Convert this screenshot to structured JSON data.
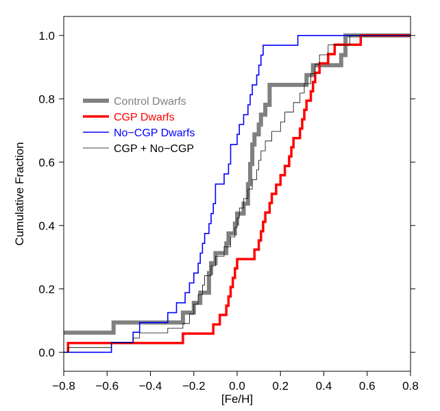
{
  "chart_data": {
    "type": "line",
    "step": true,
    "title": "",
    "xlabel": "[Fe/H]",
    "ylabel": "Cumulative Fraction",
    "xlim": [
      -0.8,
      0.8
    ],
    "ylim": [
      -0.06,
      1.06
    ],
    "x_ticks": [
      "−0.8",
      "−0.6",
      "−0.4",
      "−0.2",
      "0.0",
      "0.2",
      "0.4",
      "0.6",
      "0.8"
    ],
    "y_ticks": [
      "0.0",
      "0.2",
      "0.4",
      "0.6",
      "0.8",
      "1.0"
    ],
    "grid": false,
    "legend_position": "upper-left",
    "series": [
      {
        "name": "Control Dwarfs",
        "color": "#808080",
        "points": [
          [
            -0.8,
            0.062
          ],
          [
            -0.57,
            0.062
          ],
          [
            -0.57,
            0.094
          ],
          [
            -0.25,
            0.094
          ],
          [
            -0.25,
            0.125
          ],
          [
            -0.2,
            0.125
          ],
          [
            -0.2,
            0.156
          ],
          [
            -0.17,
            0.156
          ],
          [
            -0.17,
            0.188
          ],
          [
            -0.13,
            0.188
          ],
          [
            -0.13,
            0.25
          ],
          [
            -0.12,
            0.25
          ],
          [
            -0.12,
            0.281
          ],
          [
            -0.1,
            0.281
          ],
          [
            -0.1,
            0.313
          ],
          [
            -0.05,
            0.313
          ],
          [
            -0.05,
            0.344
          ],
          [
            -0.04,
            0.344
          ],
          [
            -0.04,
            0.375
          ],
          [
            -0.01,
            0.375
          ],
          [
            -0.01,
            0.406
          ],
          [
            0.0,
            0.406
          ],
          [
            0.0,
            0.438
          ],
          [
            0.03,
            0.438
          ],
          [
            0.03,
            0.469
          ],
          [
            0.05,
            0.469
          ],
          [
            0.05,
            0.531
          ],
          [
            0.06,
            0.531
          ],
          [
            0.06,
            0.594
          ],
          [
            0.07,
            0.594
          ],
          [
            0.07,
            0.656
          ],
          [
            0.08,
            0.656
          ],
          [
            0.08,
            0.688
          ],
          [
            0.1,
            0.688
          ],
          [
            0.1,
            0.719
          ],
          [
            0.11,
            0.719
          ],
          [
            0.11,
            0.75
          ],
          [
            0.13,
            0.75
          ],
          [
            0.13,
            0.781
          ],
          [
            0.15,
            0.781
          ],
          [
            0.15,
            0.844
          ],
          [
            0.32,
            0.844
          ],
          [
            0.32,
            0.875
          ],
          [
            0.35,
            0.875
          ],
          [
            0.35,
            0.906
          ],
          [
            0.48,
            0.906
          ],
          [
            0.48,
            0.938
          ],
          [
            0.5,
            0.938
          ],
          [
            0.5,
            1.0
          ],
          [
            0.8,
            1.0
          ]
        ]
      },
      {
        "name": "CGP Dwarfs",
        "color": "#ff0000",
        "points": [
          [
            -0.78,
            0.0
          ],
          [
            -0.78,
            0.029
          ],
          [
            -0.25,
            0.029
          ],
          [
            -0.25,
            0.059
          ],
          [
            -0.11,
            0.059
          ],
          [
            -0.11,
            0.088
          ],
          [
            -0.08,
            0.088
          ],
          [
            -0.08,
            0.118
          ],
          [
            -0.05,
            0.118
          ],
          [
            -0.05,
            0.147
          ],
          [
            -0.04,
            0.147
          ],
          [
            -0.04,
            0.176
          ],
          [
            -0.03,
            0.176
          ],
          [
            -0.03,
            0.206
          ],
          [
            -0.02,
            0.206
          ],
          [
            -0.02,
            0.235
          ],
          [
            -0.01,
            0.235
          ],
          [
            -0.01,
            0.265
          ],
          [
            0.0,
            0.265
          ],
          [
            0.0,
            0.294
          ],
          [
            0.08,
            0.294
          ],
          [
            0.08,
            0.324
          ],
          [
            0.1,
            0.324
          ],
          [
            0.1,
            0.353
          ],
          [
            0.11,
            0.353
          ],
          [
            0.11,
            0.382
          ],
          [
            0.12,
            0.382
          ],
          [
            0.12,
            0.412
          ],
          [
            0.13,
            0.412
          ],
          [
            0.13,
            0.441
          ],
          [
            0.15,
            0.441
          ],
          [
            0.15,
            0.471
          ],
          [
            0.16,
            0.471
          ],
          [
            0.16,
            0.5
          ],
          [
            0.18,
            0.5
          ],
          [
            0.18,
            0.529
          ],
          [
            0.2,
            0.529
          ],
          [
            0.2,
            0.559
          ],
          [
            0.22,
            0.559
          ],
          [
            0.22,
            0.588
          ],
          [
            0.24,
            0.588
          ],
          [
            0.24,
            0.618
          ],
          [
            0.25,
            0.618
          ],
          [
            0.25,
            0.647
          ],
          [
            0.26,
            0.647
          ],
          [
            0.26,
            0.676
          ],
          [
            0.29,
            0.676
          ],
          [
            0.29,
            0.706
          ],
          [
            0.3,
            0.706
          ],
          [
            0.3,
            0.735
          ],
          [
            0.31,
            0.735
          ],
          [
            0.31,
            0.765
          ],
          [
            0.32,
            0.765
          ],
          [
            0.32,
            0.794
          ],
          [
            0.34,
            0.794
          ],
          [
            0.34,
            0.824
          ],
          [
            0.35,
            0.824
          ],
          [
            0.35,
            0.853
          ],
          [
            0.36,
            0.853
          ],
          [
            0.36,
            0.882
          ],
          [
            0.38,
            0.882
          ],
          [
            0.38,
            0.912
          ],
          [
            0.42,
            0.912
          ],
          [
            0.42,
            0.941
          ],
          [
            0.45,
            0.941
          ],
          [
            0.45,
            0.971
          ],
          [
            0.57,
            0.971
          ],
          [
            0.57,
            1.0
          ],
          [
            0.8,
            1.0
          ]
        ]
      },
      {
        "name": "No−CGP Dwarfs",
        "color": "#0000ff",
        "points": [
          [
            -0.8,
            0.0
          ],
          [
            -0.58,
            0.0
          ],
          [
            -0.58,
            0.031
          ],
          [
            -0.48,
            0.031
          ],
          [
            -0.48,
            0.063
          ],
          [
            -0.45,
            0.063
          ],
          [
            -0.45,
            0.094
          ],
          [
            -0.32,
            0.094
          ],
          [
            -0.32,
            0.125
          ],
          [
            -0.28,
            0.125
          ],
          [
            -0.28,
            0.156
          ],
          [
            -0.24,
            0.156
          ],
          [
            -0.24,
            0.188
          ],
          [
            -0.22,
            0.188
          ],
          [
            -0.22,
            0.219
          ],
          [
            -0.2,
            0.219
          ],
          [
            -0.2,
            0.25
          ],
          [
            -0.18,
            0.25
          ],
          [
            -0.18,
            0.281
          ],
          [
            -0.17,
            0.281
          ],
          [
            -0.17,
            0.313
          ],
          [
            -0.16,
            0.313
          ],
          [
            -0.16,
            0.344
          ],
          [
            -0.15,
            0.344
          ],
          [
            -0.15,
            0.375
          ],
          [
            -0.13,
            0.375
          ],
          [
            -0.13,
            0.406
          ],
          [
            -0.12,
            0.406
          ],
          [
            -0.12,
            0.438
          ],
          [
            -0.11,
            0.438
          ],
          [
            -0.11,
            0.469
          ],
          [
            -0.1,
            0.469
          ],
          [
            -0.1,
            0.531
          ],
          [
            -0.06,
            0.531
          ],
          [
            -0.06,
            0.563
          ],
          [
            -0.04,
            0.563
          ],
          [
            -0.04,
            0.594
          ],
          [
            -0.03,
            0.594
          ],
          [
            -0.03,
            0.656
          ],
          [
            0.0,
            0.656
          ],
          [
            0.0,
            0.688
          ],
          [
            0.01,
            0.688
          ],
          [
            0.01,
            0.719
          ],
          [
            0.03,
            0.719
          ],
          [
            0.03,
            0.75
          ],
          [
            0.05,
            0.75
          ],
          [
            0.05,
            0.781
          ],
          [
            0.06,
            0.781
          ],
          [
            0.06,
            0.813
          ],
          [
            0.07,
            0.813
          ],
          [
            0.07,
            0.844
          ],
          [
            0.09,
            0.844
          ],
          [
            0.09,
            0.875
          ],
          [
            0.1,
            0.875
          ],
          [
            0.1,
            0.906
          ],
          [
            0.11,
            0.906
          ],
          [
            0.11,
            0.938
          ],
          [
            0.12,
            0.938
          ],
          [
            0.12,
            0.969
          ],
          [
            0.28,
            0.969
          ],
          [
            0.28,
            1.0
          ],
          [
            0.8,
            1.0
          ]
        ]
      },
      {
        "name": "CGP + No−CGP",
        "color": "#000000",
        "points": [
          [
            -0.8,
            0.0
          ],
          [
            -0.78,
            0.0
          ],
          [
            -0.78,
            0.015
          ],
          [
            -0.58,
            0.015
          ],
          [
            -0.58,
            0.03
          ],
          [
            -0.48,
            0.03
          ],
          [
            -0.48,
            0.045
          ],
          [
            -0.45,
            0.045
          ],
          [
            -0.45,
            0.061
          ],
          [
            -0.32,
            0.061
          ],
          [
            -0.32,
            0.076
          ],
          [
            -0.25,
            0.076
          ],
          [
            -0.25,
            0.091
          ],
          [
            -0.22,
            0.091
          ],
          [
            -0.22,
            0.121
          ],
          [
            -0.2,
            0.121
          ],
          [
            -0.2,
            0.152
          ],
          [
            -0.18,
            0.152
          ],
          [
            -0.18,
            0.182
          ],
          [
            -0.16,
            0.182
          ],
          [
            -0.16,
            0.212
          ],
          [
            -0.15,
            0.212
          ],
          [
            -0.15,
            0.242
          ],
          [
            -0.12,
            0.242
          ],
          [
            -0.12,
            0.273
          ],
          [
            -0.1,
            0.273
          ],
          [
            -0.1,
            0.303
          ],
          [
            -0.06,
            0.303
          ],
          [
            -0.06,
            0.333
          ],
          [
            -0.03,
            0.333
          ],
          [
            -0.03,
            0.364
          ],
          [
            -0.01,
            0.364
          ],
          [
            -0.01,
            0.394
          ],
          [
            0.0,
            0.394
          ],
          [
            0.0,
            0.424
          ],
          [
            0.01,
            0.424
          ],
          [
            0.01,
            0.455
          ],
          [
            0.03,
            0.455
          ],
          [
            0.03,
            0.485
          ],
          [
            0.05,
            0.485
          ],
          [
            0.05,
            0.515
          ],
          [
            0.07,
            0.515
          ],
          [
            0.07,
            0.545
          ],
          [
            0.09,
            0.545
          ],
          [
            0.09,
            0.576
          ],
          [
            0.1,
            0.576
          ],
          [
            0.1,
            0.606
          ],
          [
            0.11,
            0.606
          ],
          [
            0.11,
            0.636
          ],
          [
            0.13,
            0.636
          ],
          [
            0.13,
            0.667
          ],
          [
            0.16,
            0.667
          ],
          [
            0.16,
            0.697
          ],
          [
            0.2,
            0.697
          ],
          [
            0.2,
            0.727
          ],
          [
            0.22,
            0.727
          ],
          [
            0.22,
            0.758
          ],
          [
            0.26,
            0.758
          ],
          [
            0.26,
            0.788
          ],
          [
            0.29,
            0.788
          ],
          [
            0.29,
            0.818
          ],
          [
            0.31,
            0.818
          ],
          [
            0.31,
            0.848
          ],
          [
            0.34,
            0.848
          ],
          [
            0.34,
            0.879
          ],
          [
            0.36,
            0.879
          ],
          [
            0.36,
            0.909
          ],
          [
            0.38,
            0.909
          ],
          [
            0.38,
            0.939
          ],
          [
            0.42,
            0.939
          ],
          [
            0.42,
            0.97
          ],
          [
            0.52,
            0.97
          ],
          [
            0.52,
            1.0
          ],
          [
            0.8,
            1.0
          ]
        ]
      }
    ],
    "legend": [
      {
        "label": "Control Dwarfs",
        "color": "#808080"
      },
      {
        "label": "CGP Dwarfs",
        "color": "#ff0000"
      },
      {
        "label": "No−CGP Dwarfs",
        "color": "#0000ff"
      },
      {
        "label": "CGP + No−CGP",
        "color": "#000000"
      }
    ]
  }
}
